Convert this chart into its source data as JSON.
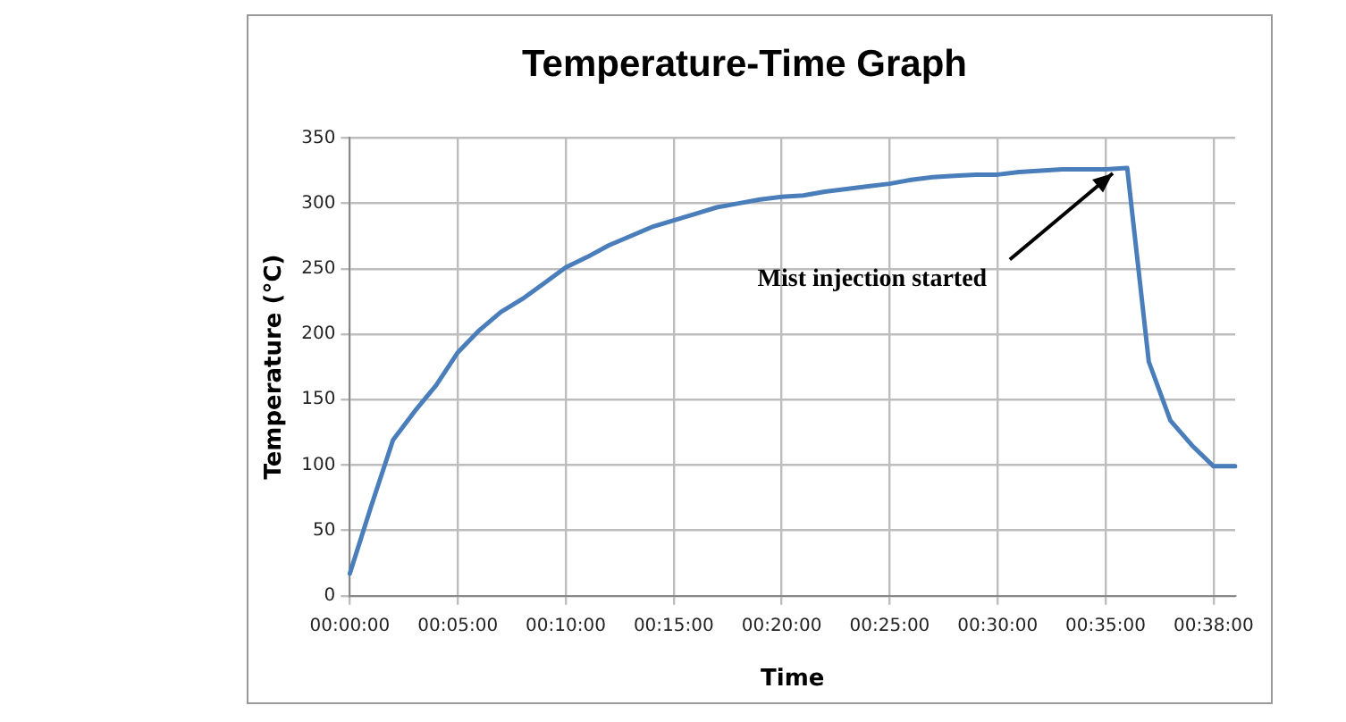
{
  "chart_data": {
    "type": "line",
    "title": "Temperature-Time Graph",
    "xlabel": "Time",
    "ylabel": "Temperature (°C)",
    "categories": [
      "00:00:00",
      null,
      null,
      null,
      null,
      "00:05:00",
      null,
      null,
      null,
      null,
      "00:10:00",
      null,
      null,
      null,
      null,
      "00:15:00",
      null,
      null,
      null,
      null,
      "00:20:00",
      null,
      null,
      null,
      null,
      "00:25:00",
      null,
      null,
      null,
      null,
      "00:30:00",
      null,
      null,
      null,
      null,
      "00:35:00",
      null,
      null,
      null,
      null,
      "00:38:00",
      null
    ],
    "series": [
      {
        "color": "#4a7ebb",
        "values": [
          17,
          69,
          119,
          141,
          161,
          186,
          203,
          217,
          227,
          239,
          251,
          259,
          268,
          275,
          282,
          287,
          292,
          297,
          300,
          303,
          305,
          306,
          309,
          311,
          313,
          315,
          318,
          320,
          321,
          322,
          322,
          324,
          325,
          326,
          326,
          326,
          327,
          179,
          134,
          115,
          99,
          99
        ]
      }
    ],
    "ylim": [
      0,
      350
    ],
    "yticks": [
      0,
      50,
      100,
      150,
      200,
      250,
      300,
      350
    ],
    "grid": true,
    "legend": false,
    "marker": "none",
    "line_style": "solid",
    "annotations": [
      {
        "text": "Mist injection started",
        "x": "00:35:00",
        "y": 327
      }
    ]
  }
}
